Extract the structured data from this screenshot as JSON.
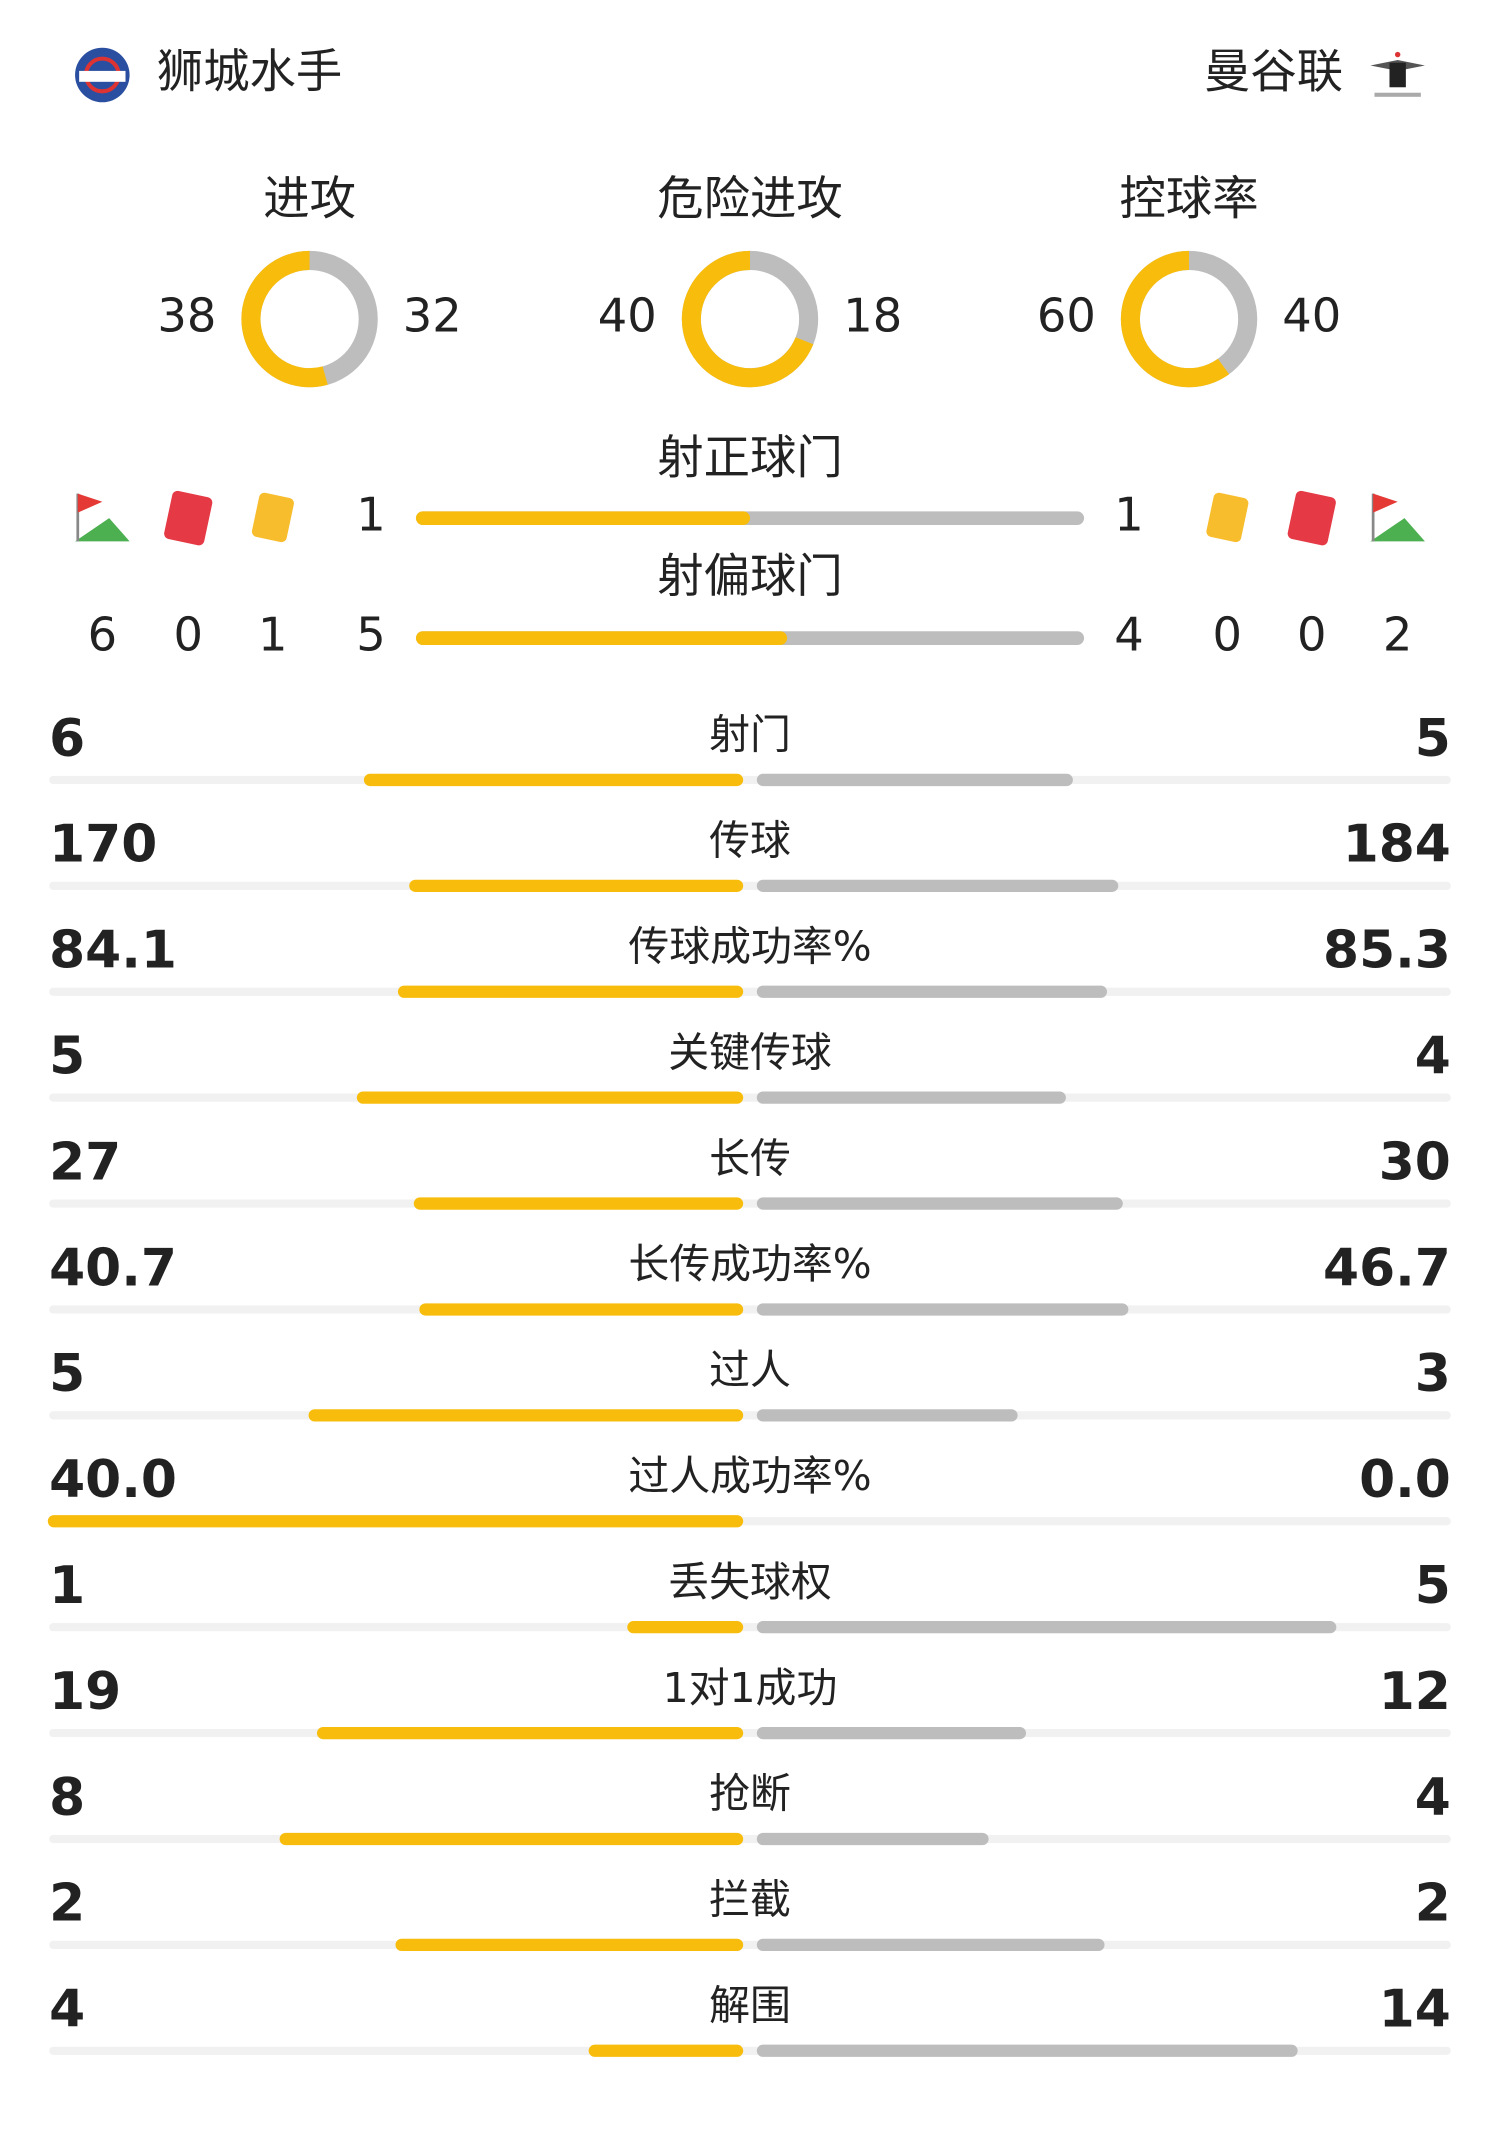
{
  "home_team": "狮城水手",
  "away_team": "曼谷联",
  "rings": [
    {
      "label": "进攻",
      "home": 38,
      "away": 32
    },
    {
      "label": "危险进攻",
      "home": 40,
      "away": 18
    },
    {
      "label": "控球率",
      "home": 60,
      "away": 40
    }
  ],
  "shot_bars": [
    {
      "label": "射正球门",
      "home": 1,
      "away": 1
    },
    {
      "label": "射偏球门",
      "home": 5,
      "away": 4
    }
  ],
  "home_counts": {
    "corners": 6,
    "red_cards": 0,
    "yellow_cards": 1
  },
  "away_counts": {
    "yellow_cards": 0,
    "red_cards": 0,
    "corners": 2
  },
  "stats": [
    {
      "label": "射门",
      "home": "6",
      "away": "5"
    },
    {
      "label": "传球",
      "home": "170",
      "away": "184"
    },
    {
      "label": "传球成功率%",
      "home": "84.1",
      "away": "85.3"
    },
    {
      "label": "关键传球",
      "home": "5",
      "away": "4"
    },
    {
      "label": "长传",
      "home": "27",
      "away": "30"
    },
    {
      "label": "长传成功率%",
      "home": "40.7",
      "away": "46.7"
    },
    {
      "label": "过人",
      "home": "5",
      "away": "3"
    },
    {
      "label": "过人成功率%",
      "home": "40.0",
      "away": "0.0"
    },
    {
      "label": "丢失球权",
      "home": "1",
      "away": "5"
    },
    {
      "label": "1对1成功",
      "home": "19",
      "away": "12"
    },
    {
      "label": "抢断",
      "home": "8",
      "away": "4"
    },
    {
      "label": "拦截",
      "home": "2",
      "away": "2"
    },
    {
      "label": "解围",
      "home": "4",
      "away": "14"
    }
  ]
}
